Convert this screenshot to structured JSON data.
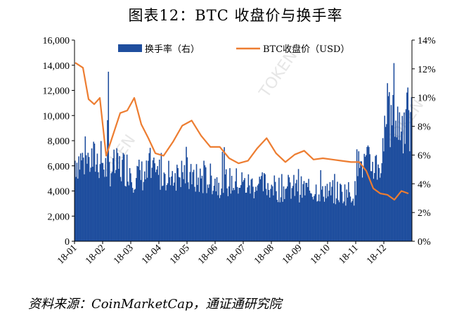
{
  "title": "图表12：BTC 收盘价与换手率",
  "source": "资料来源：CoinMarketCap，通证通研究院",
  "watermark": "TOKEN",
  "chart_data": {
    "type": "bar+line",
    "title": "图表12：BTC 收盘价与换手率",
    "x": [
      "18-01",
      "18-02",
      "18-03",
      "18-04",
      "18-05",
      "18-06",
      "18-07",
      "18-08",
      "18-09",
      "18-10",
      "18-11",
      "18-12"
    ],
    "xlabels": [
      "18-01",
      "18-02",
      "18-03",
      "18-04",
      "18-05",
      "18-06",
      "18-07",
      "18-08",
      "18-09",
      "18-10",
      "18-11",
      "18-12"
    ],
    "y_left": {
      "label": "",
      "ylim": [
        0,
        16000
      ],
      "ticks": [
        "0",
        "2,000",
        "4,000",
        "6,000",
        "8,000",
        "10,000",
        "12,000",
        "14,000",
        "16,000"
      ]
    },
    "y_right": {
      "label": "",
      "ylim": [
        0,
        14
      ],
      "ticks": [
        "0%",
        "2%",
        "4%",
        "6%",
        "8%",
        "10%",
        "12%",
        "14%"
      ]
    },
    "legend_position": "top",
    "grid": false,
    "series": [
      {
        "name": "换手率（右）",
        "type": "bar",
        "axis": "right",
        "color": "#1f4e9e",
        "monthly_approx_pct": [
          5.5,
          5.0,
          4.5,
          4.6,
          4.2,
          4.0,
          3.8,
          3.6,
          3.5,
          3.3,
          5.2,
          8.0
        ],
        "peaks_pct": [
          {
            "x": "18-02",
            "value": 11.8
          },
          {
            "x": "18-12",
            "value": 12.4
          },
          {
            "x": "18-12",
            "value": 10.7
          }
        ]
      },
      {
        "name": "BTC收盘价（USD）",
        "type": "line",
        "axis": "left",
        "color": "#ed7d31",
        "points": [
          [
            "18-01",
            14200
          ],
          [
            "18-01",
            13800
          ],
          [
            "18-01",
            11300
          ],
          [
            "18-01",
            10900
          ],
          [
            "18-01",
            11400
          ],
          [
            "18-02",
            6800
          ],
          [
            "18-02",
            8500
          ],
          [
            "18-02",
            10200
          ],
          [
            "18-02",
            10400
          ],
          [
            "18-03",
            11400
          ],
          [
            "18-03",
            9300
          ],
          [
            "18-03",
            8200
          ],
          [
            "18-03",
            7000
          ],
          [
            "18-04",
            6800
          ],
          [
            "18-04",
            7900
          ],
          [
            "18-04",
            9200
          ],
          [
            "18-05",
            9600
          ],
          [
            "18-05",
            8400
          ],
          [
            "18-05",
            7500
          ],
          [
            "18-06",
            7500
          ],
          [
            "18-06",
            6600
          ],
          [
            "18-06",
            6200
          ],
          [
            "18-07",
            6400
          ],
          [
            "18-07",
            7400
          ],
          [
            "18-07",
            8200
          ],
          [
            "18-08",
            7000
          ],
          [
            "18-08",
            6300
          ],
          [
            "18-08",
            6900
          ],
          [
            "18-09",
            7200
          ],
          [
            "18-09",
            6500
          ],
          [
            "18-09",
            6600
          ],
          [
            "18-10",
            6500
          ],
          [
            "18-10",
            6400
          ],
          [
            "18-10",
            6300
          ],
          [
            "18-11",
            6300
          ],
          [
            "18-11",
            5600
          ],
          [
            "18-11",
            4200
          ],
          [
            "18-11",
            3800
          ],
          [
            "18-12",
            3700
          ],
          [
            "18-12",
            3300
          ],
          [
            "18-12",
            4000
          ],
          [
            "18-12",
            3800
          ]
        ]
      }
    ]
  }
}
